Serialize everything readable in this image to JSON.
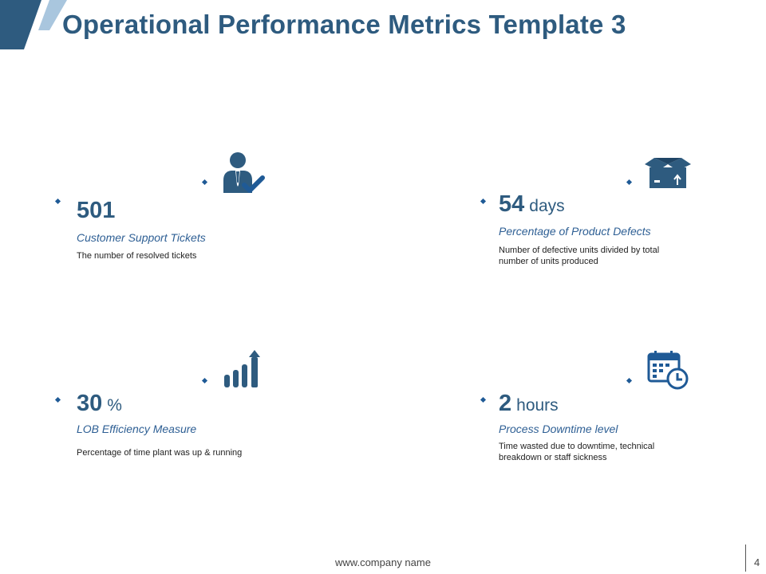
{
  "slide": {
    "title": "Operational Performance Metrics Template 3",
    "colors": {
      "accent": "#2e5b7f",
      "corner_light": "#a9c6de",
      "border": "#1f5a96"
    }
  },
  "cards": [
    {
      "value": "501",
      "unit": "",
      "label": "Customer Support Tickets",
      "description": "The number of resolved tickets",
      "icon": "support-agent-check-icon"
    },
    {
      "value": "54",
      "unit": "days",
      "label": "Percentage of Product Defects",
      "description": "Number of defective units divided by total number of units produced",
      "icon": "open-box-icon"
    },
    {
      "value": "30",
      "unit": "%",
      "label": "LOB Efficiency Measure",
      "description": "Percentage of time plant was up & running",
      "icon": "growth-bar-chart-icon"
    },
    {
      "value": "2",
      "unit": "hours",
      "label": "Process Downtime level",
      "description": "Time wasted due to downtime, technical breakdown or staff sickness",
      "icon": "calendar-clock-icon"
    }
  ],
  "footer": {
    "website": "www.company name",
    "page_number": "4"
  }
}
